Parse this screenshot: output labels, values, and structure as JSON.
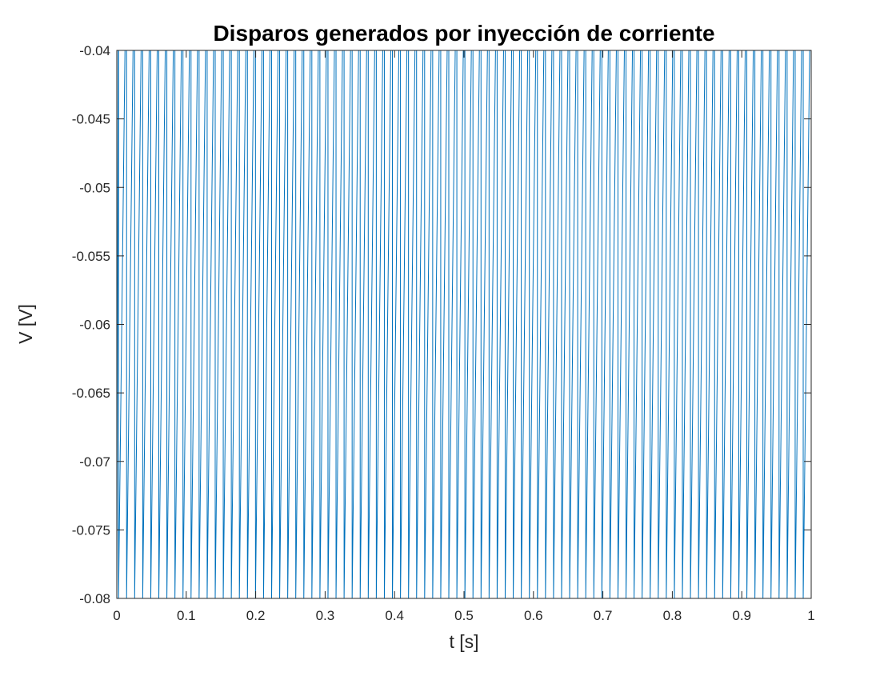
{
  "chart_data": {
    "type": "line",
    "title": "Disparos generados por inyección de corriente",
    "xlabel": "t [s]",
    "ylabel": "V [V]",
    "xlim": [
      0,
      1
    ],
    "ylim": [
      -0.08,
      -0.04
    ],
    "xticks": [
      "0",
      "0.1",
      "0.2",
      "0.3",
      "0.4",
      "0.5",
      "0.6",
      "0.7",
      "0.8",
      "0.9",
      "1"
    ],
    "yticks": [
      "-0.04",
      "-0.045",
      "-0.05",
      "-0.055",
      "-0.06",
      "-0.065",
      "-0.07",
      "-0.075",
      "-0.08"
    ],
    "grid": false,
    "series": [
      {
        "color": "#0072BD",
        "spike_period_s": 0.0116,
        "first_spike_s": 0.0025,
        "reset_value_V": -0.08,
        "threshold_value_V": -0.04,
        "waveform": "periodic sawtooth: ramps from -0.08 to above -0.04 then resets"
      }
    ]
  }
}
